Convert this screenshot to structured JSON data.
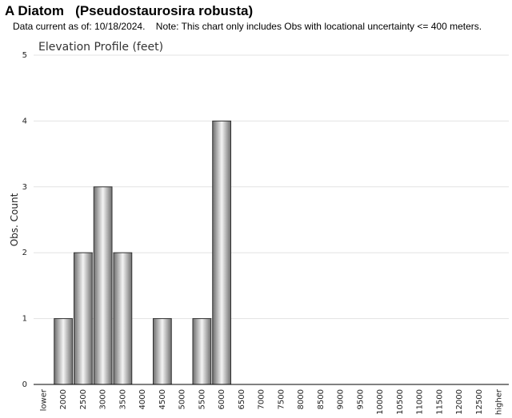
{
  "header": {
    "title": "A Diatom   (Pseudostaurosira robusta)",
    "subtitle": "Data current as of: 10/18/2024.    Note: This chart only includes Obs with locational uncertainty <= 400 meters."
  },
  "chart_data": {
    "type": "bar",
    "title": "Elevation Profile (feet)",
    "ylabel": "Obs. Count",
    "xlabel": "",
    "ylim": [
      0,
      5
    ],
    "yticks": [
      0,
      1,
      2,
      3,
      4,
      5
    ],
    "grid": true,
    "categories": [
      "lower",
      "2000",
      "2500",
      "3000",
      "3500",
      "4000",
      "4500",
      "5000",
      "5500",
      "6000",
      "6500",
      "7000",
      "7500",
      "8000",
      "8500",
      "9000",
      "9500",
      "10000",
      "10500",
      "11000",
      "11500",
      "12000",
      "12500",
      "higher"
    ],
    "values": [
      0,
      1,
      2,
      3,
      2,
      0,
      1,
      0,
      1,
      4,
      0,
      0,
      0,
      0,
      0,
      0,
      0,
      0,
      0,
      0,
      0,
      0,
      0,
      0
    ],
    "colors": {
      "bar_dark": "#6e6e6e",
      "bar_light": "#f4f4f4",
      "bar_stroke": "#333333",
      "grid": "#e3e3e3",
      "axis": "#000000"
    }
  }
}
